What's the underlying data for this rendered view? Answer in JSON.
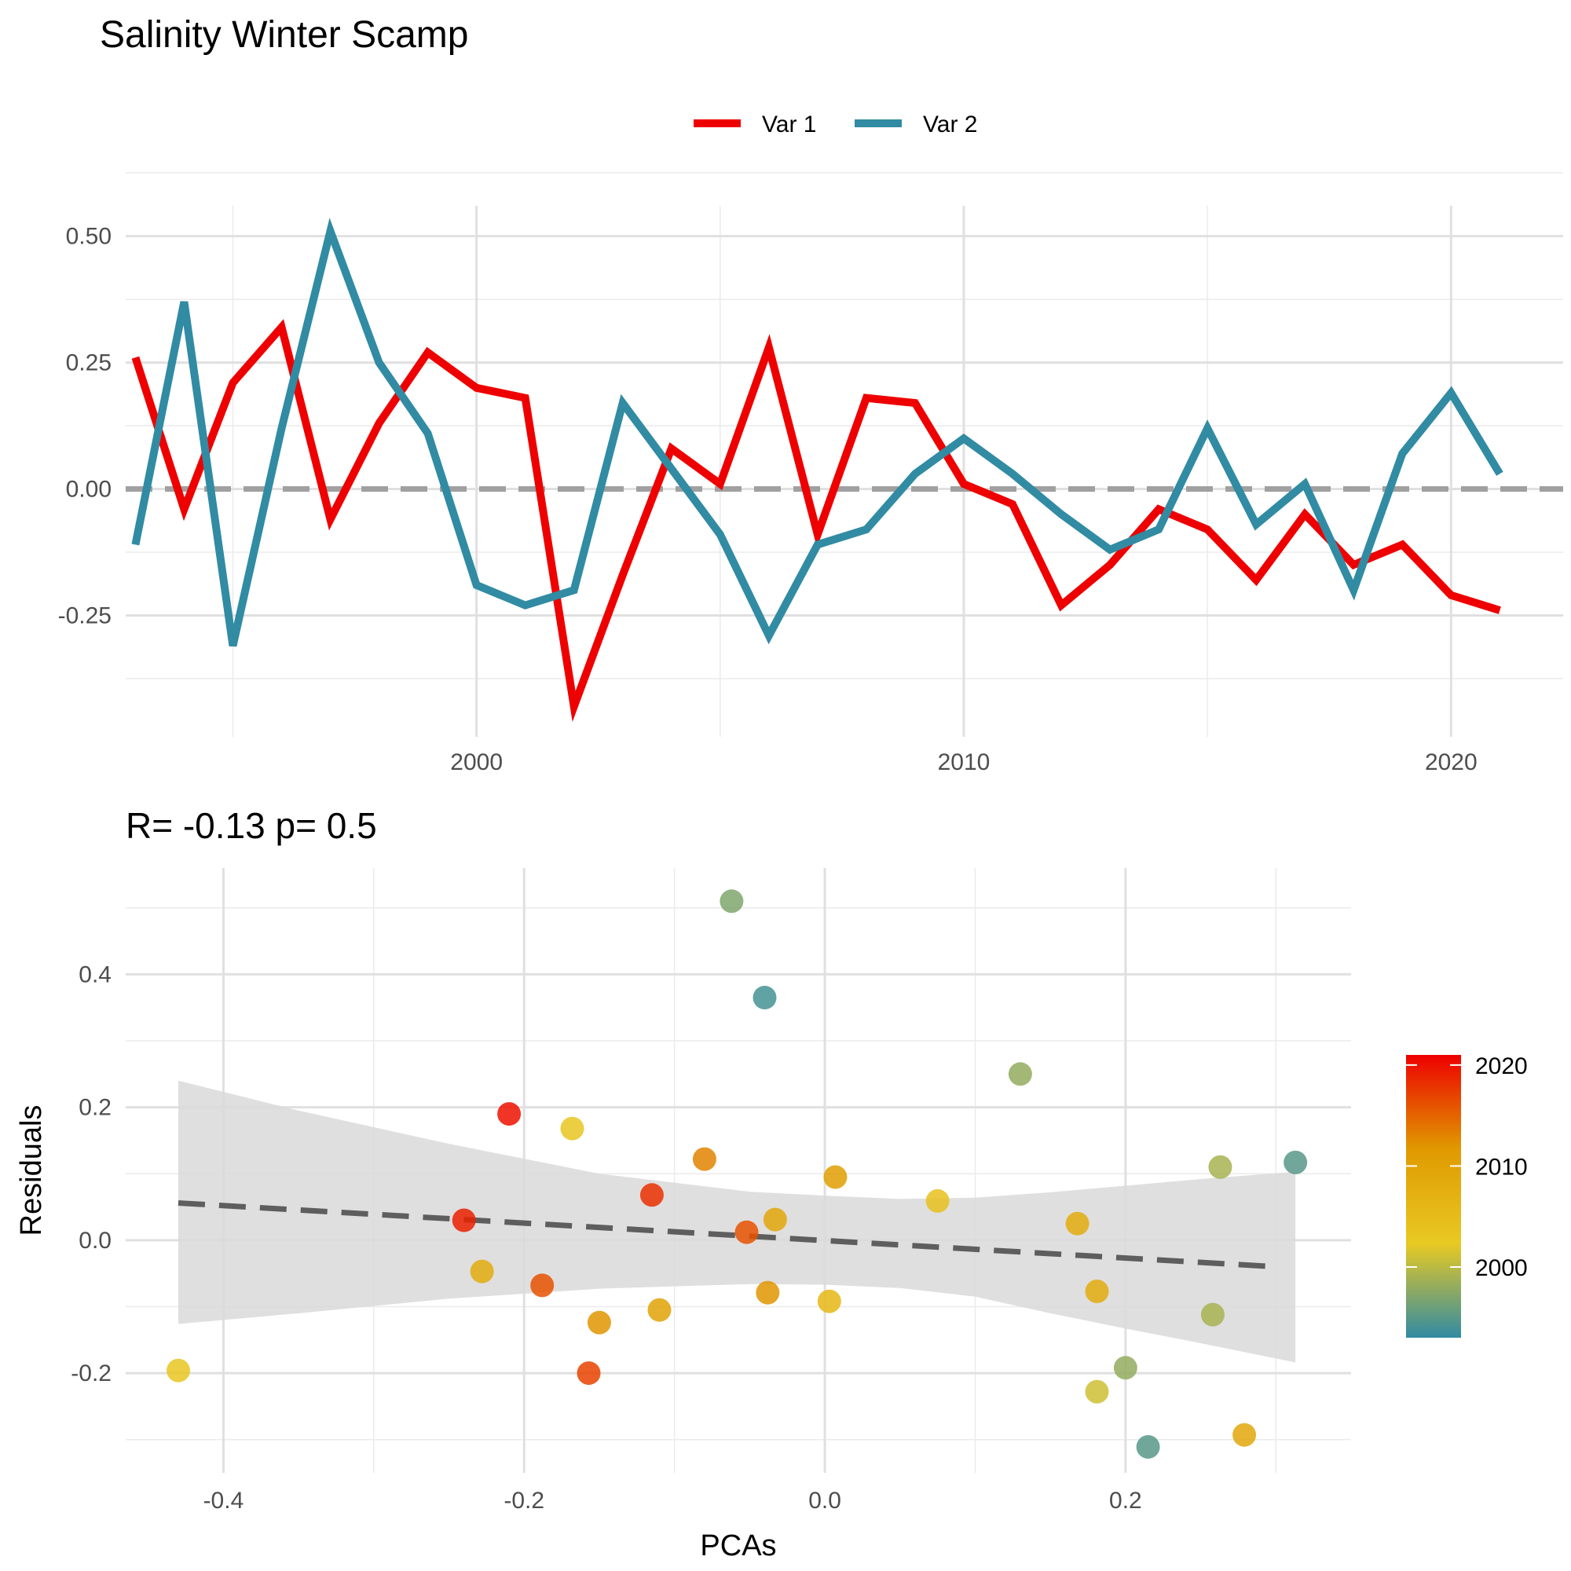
{
  "title": "Salinity Winter Scamp",
  "chart_data": [
    {
      "type": "line",
      "x": [
        1993,
        1994,
        1995,
        1996,
        1997,
        1998,
        1999,
        2000,
        2001,
        2002,
        2003,
        2004,
        2005,
        2006,
        2007,
        2008,
        2009,
        2010,
        2011,
        2012,
        2013,
        2014,
        2015,
        2016,
        2017,
        2018,
        2019,
        2020,
        2021
      ],
      "series": [
        {
          "name": "Var 1",
          "color": "#ee0000",
          "values": [
            0.26,
            -0.04,
            0.21,
            0.32,
            -0.06,
            0.13,
            0.27,
            0.2,
            0.18,
            -0.43,
            -0.17,
            0.08,
            0.01,
            0.28,
            -0.09,
            0.18,
            0.17,
            0.01,
            -0.03,
            -0.23,
            -0.15,
            -0.04,
            -0.08,
            -0.18,
            -0.05,
            -0.15,
            -0.11,
            -0.21,
            -0.24
          ]
        },
        {
          "name": "Var 2",
          "color": "#318ba3",
          "values": [
            -0.11,
            0.37,
            -0.31,
            0.12,
            0.51,
            0.25,
            0.11,
            -0.19,
            -0.23,
            -0.2,
            0.17,
            0.04,
            -0.09,
            -0.29,
            -0.11,
            -0.08,
            0.03,
            0.1,
            0.03,
            -0.05,
            -0.12,
            -0.08,
            0.12,
            -0.07,
            0.01,
            -0.2,
            0.07,
            0.19,
            0.03
          ]
        }
      ],
      "xlim": [
        1992.8,
        2022.3
      ],
      "ylim": [
        -0.49,
        0.56
      ],
      "xticks": [
        2000,
        2010,
        2020
      ],
      "yticks": [
        0.5,
        0.25,
        0.0,
        -0.25
      ],
      "ytick_labels": [
        "0.50",
        "0.25",
        "0.00",
        "-0.25"
      ],
      "reference_line": 0,
      "legend_position": "top",
      "grid": true
    },
    {
      "type": "scatter",
      "subtitle": "R= -0.13  p= 0.5",
      "xlabel": "PCAs",
      "ylabel": "Residuals",
      "xlim": [
        -0.465,
        0.35
      ],
      "ylim": [
        -0.35,
        0.56
      ],
      "xticks": [
        -0.4,
        -0.2,
        0.0,
        0.2
      ],
      "xtick_labels": [
        "-0.4",
        "-0.2",
        "0.0",
        "0.2"
      ],
      "yticks": [
        0.4,
        0.2,
        0.0,
        -0.2
      ],
      "ytick_labels": [
        "0.4",
        "0.2",
        "0.0",
        "-0.2"
      ],
      "points": [
        {
          "x": -0.062,
          "y": 0.51,
          "year": 1997
        },
        {
          "x": -0.04,
          "y": 0.365,
          "year": 1994
        },
        {
          "x": 0.13,
          "y": 0.25,
          "year": 1998
        },
        {
          "x": -0.21,
          "y": 0.19,
          "year": 2020
        },
        {
          "x": -0.168,
          "y": 0.168,
          "year": 2003
        },
        {
          "x": -0.08,
          "y": 0.122,
          "year": 2013
        },
        {
          "x": 0.263,
          "y": 0.11,
          "year": 1999
        },
        {
          "x": 0.313,
          "y": 0.117,
          "year": 1995
        },
        {
          "x": 0.007,
          "y": 0.095,
          "year": 2011
        },
        {
          "x": -0.115,
          "y": 0.068,
          "year": 2018
        },
        {
          "x": 0.075,
          "y": 0.059,
          "year": 2004
        },
        {
          "x": -0.033,
          "y": 0.031,
          "year": 2009
        },
        {
          "x": -0.052,
          "y": 0.012,
          "year": 2016
        },
        {
          "x": -0.24,
          "y": 0.03,
          "year": 2019
        },
        {
          "x": 0.168,
          "y": 0.025,
          "year": 2008
        },
        {
          "x": -0.228,
          "y": -0.047,
          "year": 2008
        },
        {
          "x": -0.188,
          "y": -0.068,
          "year": 2016
        },
        {
          "x": -0.038,
          "y": -0.079,
          "year": 2012
        },
        {
          "x": 0.181,
          "y": -0.077,
          "year": 2008
        },
        {
          "x": 0.003,
          "y": -0.092,
          "year": 2006
        },
        {
          "x": -0.11,
          "y": -0.105,
          "year": 2010
        },
        {
          "x": -0.15,
          "y": -0.124,
          "year": 2012
        },
        {
          "x": 0.258,
          "y": -0.112,
          "year": 1999
        },
        {
          "x": -0.43,
          "y": -0.196,
          "year": 2003
        },
        {
          "x": -0.157,
          "y": -0.2,
          "year": 2017
        },
        {
          "x": 0.2,
          "y": -0.192,
          "year": 1998
        },
        {
          "x": 0.181,
          "y": -0.228,
          "year": 2001
        },
        {
          "x": 0.215,
          "y": -0.311,
          "year": 1995
        },
        {
          "x": 0.279,
          "y": -0.293,
          "year": 2009
        }
      ],
      "trend": {
        "x": [
          -0.43,
          0.3
        ],
        "y": [
          0.056,
          -0.04
        ],
        "style": "dashed",
        "color": "#5e5e5e"
      },
      "ci_band": {
        "x": [
          -0.43,
          -0.35,
          -0.25,
          -0.15,
          -0.05,
          0.0,
          0.05,
          0.1,
          0.15,
          0.2,
          0.25,
          0.313
        ],
        "upper": [
          0.24,
          0.195,
          0.145,
          0.1,
          0.073,
          0.067,
          0.062,
          0.064,
          0.072,
          0.082,
          0.092,
          0.103
        ],
        "lower": [
          -0.126,
          -0.11,
          -0.088,
          -0.073,
          -0.066,
          -0.067,
          -0.072,
          -0.085,
          -0.11,
          -0.133,
          -0.155,
          -0.184
        ]
      },
      "colorbar": {
        "range": [
          1993,
          2021
        ],
        "ticks": [
          2000,
          2010,
          2020
        ],
        "tick_labels": [
          "2000",
          "2010",
          "2020"
        ],
        "colors": [
          "#318ba3",
          "#e8c923",
          "#e09a00",
          "#ee0000"
        ]
      }
    }
  ]
}
